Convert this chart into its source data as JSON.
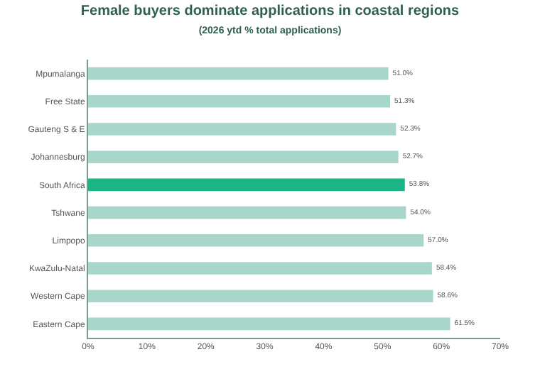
{
  "chart_data": {
    "type": "bar",
    "orientation": "horizontal",
    "title": "Female buyers dominate applications in coastal regions",
    "subtitle": "(2026 ytd % total applications)",
    "categories": [
      "Mpumalanga",
      "Free State",
      "Gauteng S & E",
      "Johannesburg",
      "South Africa",
      "Tshwane",
      "Limpopo",
      "KwaZulu-Natal",
      "Western Cape",
      "Eastern Cape"
    ],
    "values": [
      51.0,
      51.3,
      52.3,
      52.7,
      53.8,
      54.0,
      57.0,
      58.4,
      58.6,
      61.5
    ],
    "colors": [
      "#a9d6ca",
      "#a9d6ca",
      "#a9d6ca",
      "#a9d6ca",
      "#1db488",
      "#a9d6ca",
      "#a9d6ca",
      "#a9d6ca",
      "#a9d6ca",
      "#a9d6ca"
    ],
    "value_labels": [
      "51.0%",
      "51.3%",
      "52.3%",
      "52.7%",
      "53.8%",
      "54.0%",
      "57.0%",
      "58.4%",
      "58.6%",
      "61.5%"
    ],
    "xlim": [
      0,
      70
    ],
    "xticks": [
      {
        "value": 0,
        "label": "0%"
      },
      {
        "value": 10,
        "label": "10%"
      },
      {
        "value": 20,
        "label": "20%"
      },
      {
        "value": 30,
        "label": "30%"
      },
      {
        "value": 40,
        "label": "40%"
      },
      {
        "value": 50,
        "label": "50%"
      },
      {
        "value": 60,
        "label": "60%"
      },
      {
        "value": 70,
        "label": "70%"
      }
    ],
    "legend": false
  }
}
